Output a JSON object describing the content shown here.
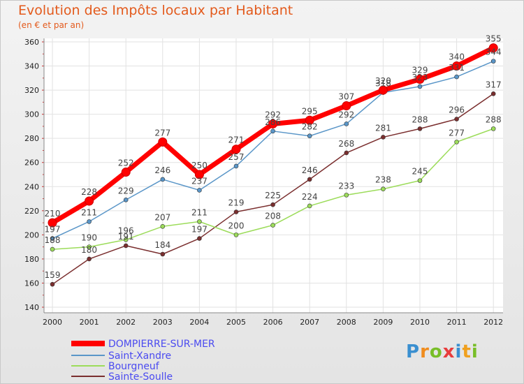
{
  "chart_data": {
    "type": "line",
    "title": "Evolution des Impôts locaux par Habitant",
    "subtitle": "(en € et par an)",
    "xlabel": "",
    "ylabel": "",
    "ylim": [
      140,
      360
    ],
    "y_ticks": [
      140,
      160,
      180,
      200,
      220,
      240,
      260,
      280,
      300,
      320,
      340,
      360
    ],
    "categories": [
      "2000",
      "2001",
      "2002",
      "2003",
      "2004",
      "2005",
      "2006",
      "2007",
      "2008",
      "2009",
      "2010",
      "2011",
      "2012"
    ],
    "grid": true,
    "legend_position": "bottom-left",
    "series": [
      {
        "name": "DOMPIERRE-SUR-MER",
        "color": "#ff0000",
        "values": [
          210,
          228,
          252,
          277,
          250,
          271,
          292,
          295,
          307,
          320,
          329,
          340,
          355
        ]
      },
      {
        "name": "Saint-Xandre",
        "color": "#5a96c8",
        "values": [
          197,
          211,
          229,
          246,
          237,
          257,
          286,
          282,
          292,
          318,
          323,
          331,
          344
        ]
      },
      {
        "name": "Bourgneuf",
        "color": "#9cdc5a",
        "values": [
          188,
          190,
          196,
          207,
          211,
          200,
          208,
          224,
          233,
          238,
          245,
          277,
          288
        ]
      },
      {
        "name": "Sainte-Soulle",
        "color": "#7a2e2e",
        "values": [
          159,
          180,
          191,
          184,
          197,
          219,
          225,
          246,
          268,
          281,
          288,
          296,
          317
        ]
      }
    ]
  },
  "logo": {
    "letters": [
      "P",
      "r",
      "o",
      "x",
      "i",
      "t",
      "i"
    ],
    "colors": [
      "#3a8fd0",
      "#f08c1e",
      "#78be28",
      "#e83c3c",
      "#3a8fd0",
      "#f0a01e",
      "#78be28"
    ]
  }
}
